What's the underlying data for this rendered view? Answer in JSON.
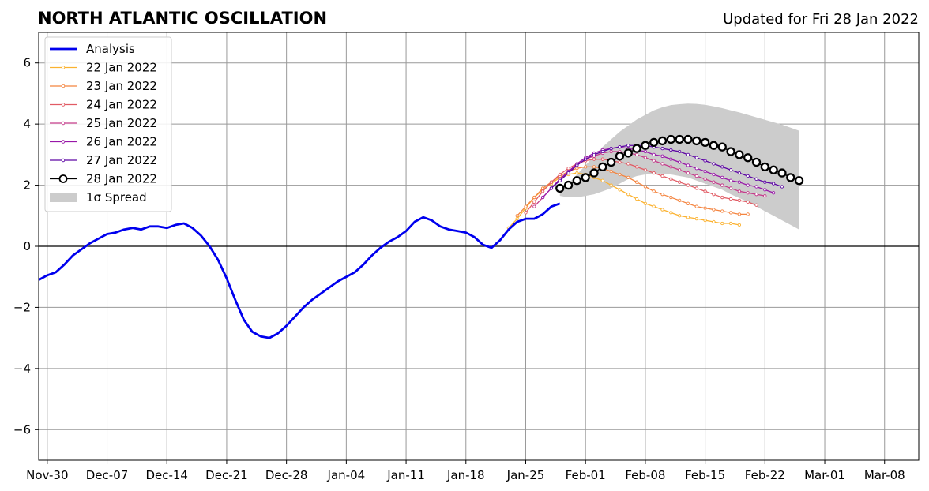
{
  "chart_data": {
    "type": "line",
    "title": "NORTH ATLANTIC OSCILLATION",
    "subtitle": "Updated for Fri 28 Jan 2022",
    "ylim": [
      -7,
      7
    ],
    "yticks": [
      -6,
      -4,
      -2,
      0,
      2,
      4,
      6
    ],
    "ytick_labels": [
      "−6",
      "−4",
      "−2",
      "0",
      "2",
      "4",
      "6"
    ],
    "xlim": [
      "2021-11-29",
      "2022-03-12"
    ],
    "xticks": [
      "2021-11-30",
      "2021-12-07",
      "2021-12-14",
      "2021-12-21",
      "2021-12-28",
      "2022-01-04",
      "2022-01-11",
      "2022-01-18",
      "2022-01-25",
      "2022-02-01",
      "2022-02-08",
      "2022-02-15",
      "2022-02-22",
      "2022-03-01",
      "2022-03-08"
    ],
    "xtick_labels": [
      "Nov-30",
      "Dec-07",
      "Dec-14",
      "Dec-21",
      "Dec-28",
      "Jan-04",
      "Jan-11",
      "Jan-18",
      "Jan-25",
      "Feb-01",
      "Feb-08",
      "Feb-15",
      "Feb-22",
      "Mar-01",
      "Mar-08"
    ],
    "grid": true,
    "legend_position": "upper-left",
    "analysis": {
      "name": "Analysis",
      "color": "#0000ee",
      "start": "2021-11-29",
      "values": [
        -1.1,
        -0.95,
        -0.85,
        -0.6,
        -0.3,
        -0.1,
        0.1,
        0.25,
        0.4,
        0.45,
        0.55,
        0.6,
        0.55,
        0.65,
        0.65,
        0.6,
        0.7,
        0.75,
        0.6,
        0.35,
        0.0,
        -0.45,
        -1.05,
        -1.75,
        -2.4,
        -2.8,
        -2.95,
        -3.0,
        -2.85,
        -2.6,
        -2.3,
        -2.0,
        -1.75,
        -1.55,
        -1.35,
        -1.15,
        -1.0,
        -0.85,
        -0.6,
        -0.3,
        -0.05,
        0.15,
        0.3,
        0.5,
        0.8,
        0.95,
        0.85,
        0.65,
        0.55,
        0.5,
        0.45,
        0.3,
        0.05,
        -0.05,
        0.2,
        0.55,
        0.8,
        0.9,
        0.9,
        1.05,
        1.3,
        1.4
      ]
    },
    "forecasts": [
      {
        "name": "22 Jan 2022",
        "color": "#fbb230",
        "start": "2022-01-23",
        "values": [
          0.6,
          0.9,
          1.25,
          1.6,
          1.85,
          2.05,
          2.25,
          2.35,
          2.4,
          2.35,
          2.25,
          2.15,
          2.0,
          1.85,
          1.7,
          1.55,
          1.4,
          1.3,
          1.2,
          1.1,
          1.0,
          0.95,
          0.9,
          0.85,
          0.8,
          0.75,
          0.75,
          0.7
        ]
      },
      {
        "name": "23 Jan 2022",
        "color": "#f4843f",
        "start": "2022-01-24",
        "values": [
          1.0,
          1.3,
          1.6,
          1.9,
          2.1,
          2.3,
          2.45,
          2.55,
          2.6,
          2.6,
          2.55,
          2.45,
          2.35,
          2.25,
          2.1,
          1.95,
          1.8,
          1.7,
          1.6,
          1.5,
          1.4,
          1.3,
          1.25,
          1.2,
          1.15,
          1.1,
          1.05,
          1.05
        ]
      },
      {
        "name": "24 Jan 2022",
        "color": "#e15b64",
        "start": "2022-01-25",
        "values": [
          1.1,
          1.45,
          1.8,
          2.1,
          2.35,
          2.55,
          2.7,
          2.8,
          2.85,
          2.85,
          2.8,
          2.75,
          2.7,
          2.6,
          2.5,
          2.4,
          2.3,
          2.2,
          2.1,
          2.0,
          1.9,
          1.8,
          1.7,
          1.6,
          1.55,
          1.5,
          1.45,
          1.35
        ]
      },
      {
        "name": "25 Jan 2022",
        "color": "#c53c8b",
        "start": "2022-01-26",
        "values": [
          1.3,
          1.6,
          1.9,
          2.2,
          2.45,
          2.65,
          2.85,
          2.95,
          3.05,
          3.1,
          3.1,
          3.05,
          3.0,
          2.9,
          2.8,
          2.7,
          2.6,
          2.5,
          2.4,
          2.3,
          2.2,
          2.1,
          2.0,
          1.9,
          1.8,
          1.75,
          1.7,
          1.65
        ]
      },
      {
        "name": "26 Jan 2022",
        "color": "#9817a8",
        "start": "2022-01-27",
        "values": [
          1.6,
          1.9,
          2.2,
          2.45,
          2.7,
          2.9,
          3.05,
          3.15,
          3.2,
          3.25,
          3.2,
          3.15,
          3.1,
          3.0,
          2.95,
          2.85,
          2.75,
          2.65,
          2.55,
          2.45,
          2.35,
          2.25,
          2.15,
          2.1,
          2.0,
          1.95,
          1.85,
          1.75
        ]
      },
      {
        "name": "27 Jan 2022",
        "color": "#5d06a4",
        "start": "2022-01-28",
        "values": [
          1.9,
          2.15,
          2.4,
          2.65,
          2.85,
          3.0,
          3.1,
          3.2,
          3.25,
          3.3,
          3.3,
          3.3,
          3.25,
          3.2,
          3.15,
          3.1,
          3.0,
          2.9,
          2.8,
          2.7,
          2.6,
          2.5,
          2.4,
          2.3,
          2.2,
          2.1,
          2.05,
          1.95
        ]
      },
      {
        "name": "28 Jan 2022",
        "color": "#000000",
        "start": "2022-01-29",
        "values": [
          1.9,
          2.0,
          2.15,
          2.25,
          2.4,
          2.6,
          2.75,
          2.95,
          3.05,
          3.2,
          3.3,
          3.4,
          3.45,
          3.5,
          3.5,
          3.5,
          3.45,
          3.4,
          3.3,
          3.25,
          3.1,
          3.0,
          2.9,
          2.75,
          2.6,
          2.5,
          2.4,
          2.25,
          2.15
        ]
      }
    ],
    "spread": {
      "name": "1σ Spread",
      "color": "#cccccc",
      "start": "2022-01-29",
      "upper": [
        1.75,
        2.05,
        2.35,
        2.65,
        2.95,
        3.25,
        3.5,
        3.75,
        3.95,
        4.15,
        4.3,
        4.45,
        4.55,
        4.62,
        4.65,
        4.67,
        4.66,
        4.63,
        4.58,
        4.52,
        4.45,
        4.38,
        4.3,
        4.22,
        4.14,
        4.06,
        3.98,
        3.88,
        3.78
      ],
      "lower": [
        1.65,
        1.6,
        1.6,
        1.65,
        1.7,
        1.8,
        1.9,
        2.05,
        2.2,
        2.3,
        2.35,
        2.38,
        2.38,
        2.35,
        2.3,
        2.25,
        2.15,
        2.05,
        1.95,
        1.85,
        1.7,
        1.58,
        1.45,
        1.3,
        1.15,
        1.0,
        0.85,
        0.7,
        0.55
      ]
    }
  }
}
